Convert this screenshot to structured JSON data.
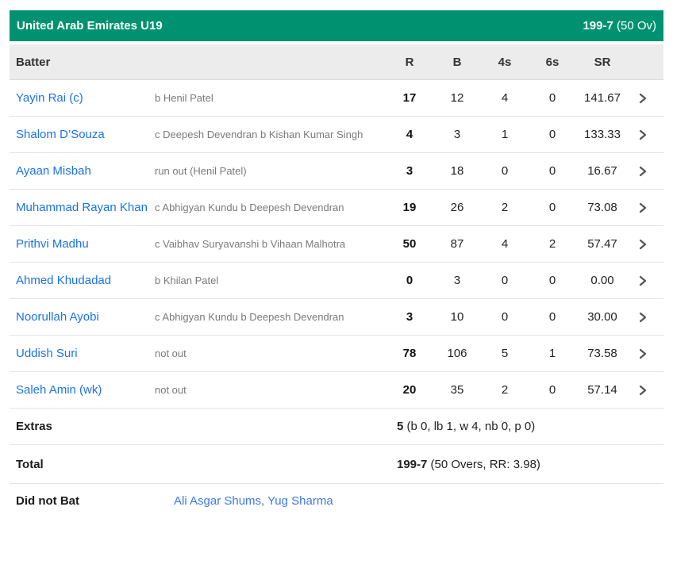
{
  "header": {
    "team": "United Arab Emirates U19",
    "score": "199-7",
    "overs": "(50 Ov)"
  },
  "columns": {
    "batter": "Batter",
    "runs": "R",
    "balls": "B",
    "fours": "4s",
    "sixes": "6s",
    "strike_rate": "SR"
  },
  "batters": [
    {
      "name": "Yayin Rai (c)",
      "dismissal": "b Henil Patel",
      "r": "17",
      "b": "12",
      "fours": "4",
      "sixes": "0",
      "sr": "141.67"
    },
    {
      "name": "Shalom D’Souza",
      "dismissal": "c Deepesh Devendran b Kishan Kumar Singh",
      "r": "4",
      "b": "3",
      "fours": "1",
      "sixes": "0",
      "sr": "133.33"
    },
    {
      "name": "Ayaan Misbah",
      "dismissal": "run out (Henil Patel)",
      "r": "3",
      "b": "18",
      "fours": "0",
      "sixes": "0",
      "sr": "16.67"
    },
    {
      "name": "Muhammad Rayan Khan",
      "dismissal": "c Abhigyan Kundu b Deepesh Devendran",
      "r": "19",
      "b": "26",
      "fours": "2",
      "sixes": "0",
      "sr": "73.08"
    },
    {
      "name": "Prithvi Madhu",
      "dismissal": "c Vaibhav Suryavanshi b Vihaan Malhotra",
      "r": "50",
      "b": "87",
      "fours": "4",
      "sixes": "2",
      "sr": "57.47"
    },
    {
      "name": "Ahmed Khudadad",
      "dismissal": "b Khilan Patel",
      "r": "0",
      "b": "3",
      "fours": "0",
      "sixes": "0",
      "sr": "0.00"
    },
    {
      "name": "Noorullah Ayobi",
      "dismissal": "c Abhigyan Kundu b Deepesh Devendran",
      "r": "3",
      "b": "10",
      "fours": "0",
      "sixes": "0",
      "sr": "30.00"
    },
    {
      "name": "Uddish Suri",
      "dismissal": "not out",
      "r": "78",
      "b": "106",
      "fours": "5",
      "sixes": "1",
      "sr": "73.58"
    },
    {
      "name": "Saleh Amin (wk)",
      "dismissal": "not out",
      "r": "20",
      "b": "35",
      "fours": "2",
      "sixes": "0",
      "sr": "57.14"
    }
  ],
  "extras": {
    "label": "Extras",
    "value": "5",
    "detail": " (b 0, lb 1, w 4, nb 0, p 0)"
  },
  "total": {
    "label": "Total",
    "value": "199-7",
    "detail": " (50 Overs, RR: 3.98)"
  },
  "did_not_bat": {
    "label": "Did not Bat",
    "players": "Ali Asgar Shums, Yug Sharma"
  },
  "colors": {
    "accent_green": "#009270",
    "link_blue": "#1a73e8",
    "header_gray": "#ececec"
  }
}
